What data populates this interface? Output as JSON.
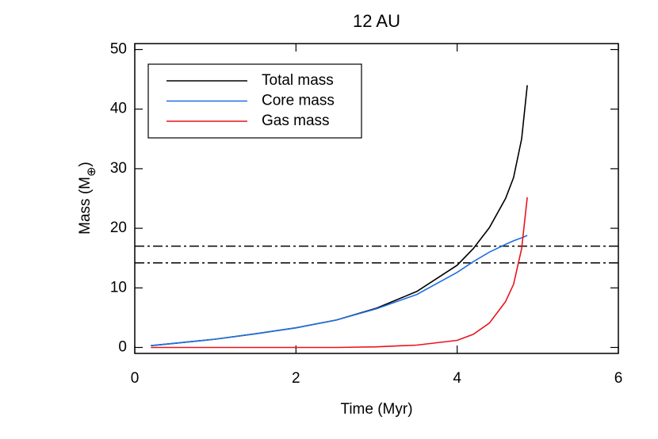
{
  "chart_data": {
    "type": "line",
    "title": "12 AU",
    "xlabel": "Time (Myr)",
    "ylabel_parts": [
      "Mass (M",
      "⊕",
      ")"
    ],
    "x": [
      0.2,
      0.5,
      1,
      1.5,
      2,
      2.5,
      3,
      3.5,
      4,
      4.2,
      4.4,
      4.6,
      4.7,
      4.8,
      4.87
    ],
    "series": [
      {
        "name": "Total mass",
        "color": "#000000",
        "values": [
          0.3,
          0.7,
          1.4,
          2.3,
          3.3,
          4.6,
          6.6,
          9.4,
          13.8,
          16.6,
          20.1,
          25,
          28.5,
          35,
          44
        ]
      },
      {
        "name": "Core mass",
        "color": "#1f6fe0",
        "values": [
          0.3,
          0.7,
          1.4,
          2.3,
          3.3,
          4.6,
          6.5,
          8.9,
          12.6,
          14.4,
          16,
          17.3,
          17.9,
          18.4,
          18.8
        ]
      },
      {
        "name": "Gas mass",
        "color": "#e8141c",
        "values": [
          0,
          0,
          0,
          0,
          0,
          0,
          0.1,
          0.4,
          1.2,
          2.2,
          4.1,
          7.7,
          10.6,
          16.6,
          25.2
        ]
      }
    ],
    "hlines": [
      17,
      14.2
    ],
    "xlim": [
      0,
      6
    ],
    "xticks": [
      0,
      2,
      4,
      6
    ],
    "ylim": [
      -1,
      51
    ],
    "yticks": [
      0,
      10,
      20,
      30,
      40,
      50
    ],
    "legend": "upper left"
  }
}
